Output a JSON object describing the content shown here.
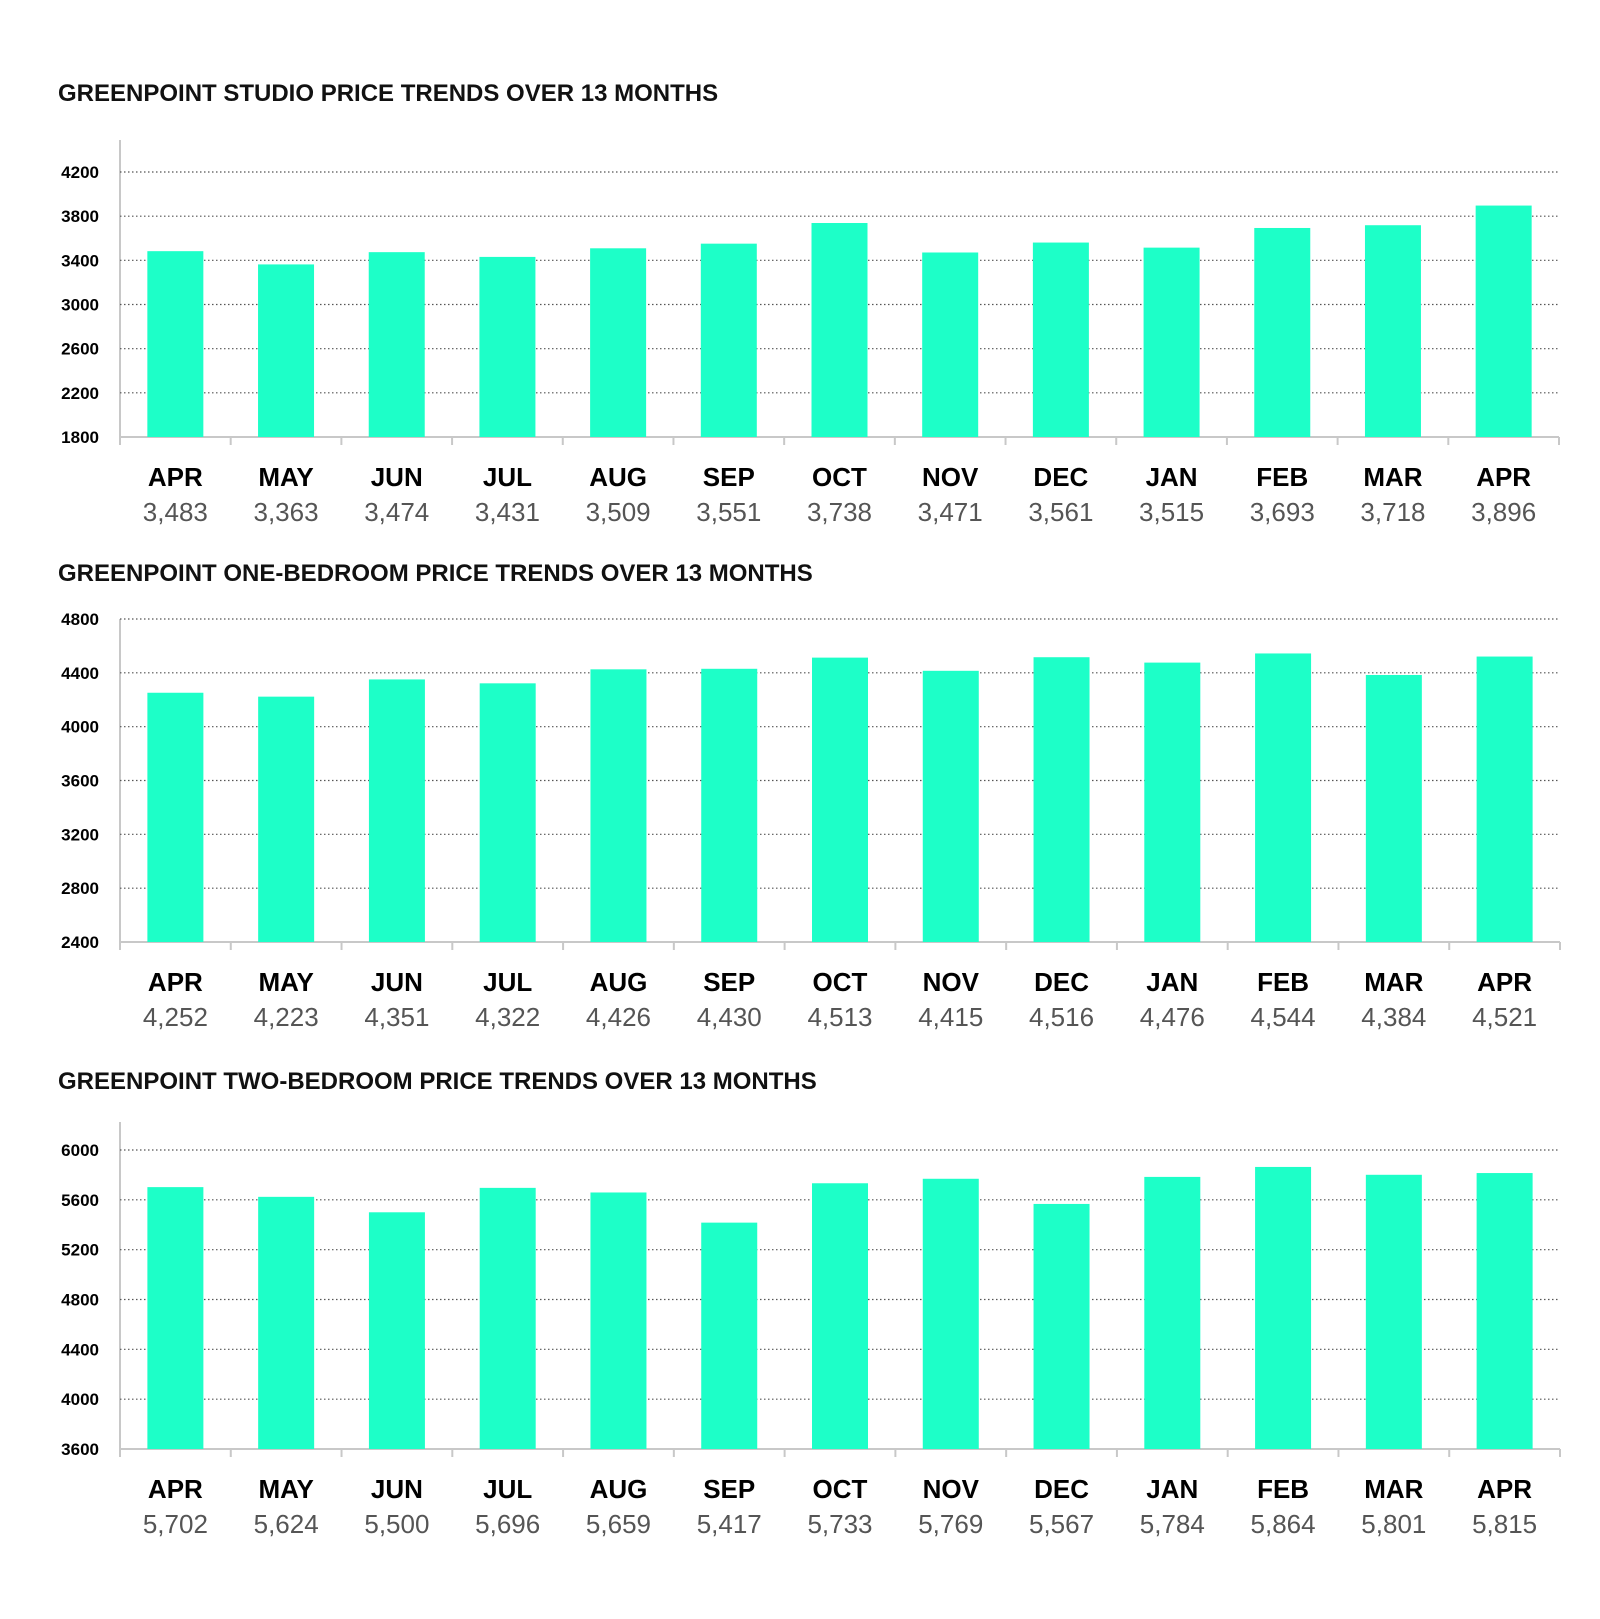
{
  "colors": {
    "bar": "#1dffc8",
    "grid": "#555555",
    "axis": "#c8c8c8",
    "month_label": "#000000",
    "value_label": "#555555",
    "tick_label": "#000000"
  },
  "chart_data": [
    {
      "type": "bar",
      "title": "GREENPOINT STUDIO PRICE TRENDS OVER 13 MONTHS",
      "xlabel": "",
      "ylabel": "",
      "categories": [
        "APR",
        "MAY",
        "JUN",
        "JUL",
        "AUG",
        "SEP",
        "OCT",
        "NOV",
        "DEC",
        "JAN",
        "FEB",
        "MAR",
        "APR"
      ],
      "values": [
        3483,
        3363,
        3474,
        3431,
        3509,
        3551,
        3738,
        3471,
        3561,
        3515,
        3693,
        3718,
        3896
      ],
      "value_labels": [
        "3,483",
        "3,363",
        "3,474",
        "3,431",
        "3,509",
        "3,551",
        "3,738",
        "3,471",
        "3,561",
        "3,515",
        "3,693",
        "3,718",
        "3,896"
      ],
      "ylim": [
        1800,
        4200
      ],
      "yticks": [
        1800,
        2200,
        2600,
        3000,
        3400,
        3800,
        4200
      ],
      "grid": true,
      "grid_style": "dotted"
    },
    {
      "type": "bar",
      "title": "GREENPOINT ONE-BEDROOM PRICE TRENDS OVER 13 MONTHS",
      "xlabel": "",
      "ylabel": "",
      "categories": [
        "APR",
        "MAY",
        "JUN",
        "JUL",
        "AUG",
        "SEP",
        "OCT",
        "NOV",
        "DEC",
        "JAN",
        "FEB",
        "MAR",
        "APR"
      ],
      "values": [
        4252,
        4223,
        4351,
        4322,
        4426,
        4430,
        4513,
        4415,
        4516,
        4476,
        4544,
        4384,
        4521
      ],
      "value_labels": [
        "4,252",
        "4,223",
        "4,351",
        "4,322",
        "4,426",
        "4,430",
        "4,513",
        "4,415",
        "4,516",
        "4,476",
        "4,544",
        "4,384",
        "4,521"
      ],
      "ylim": [
        2400,
        4800
      ],
      "yticks": [
        2400,
        2800,
        3200,
        3600,
        4000,
        4400,
        4800
      ],
      "grid": true,
      "grid_style": "dotted"
    },
    {
      "type": "bar",
      "title": "GREENPOINT TWO-BEDROOM PRICE TRENDS OVER 13 MONTHS",
      "xlabel": "",
      "ylabel": "",
      "categories": [
        "APR",
        "MAY",
        "JUN",
        "JUL",
        "AUG",
        "SEP",
        "OCT",
        "NOV",
        "DEC",
        "JAN",
        "FEB",
        "MAR",
        "APR"
      ],
      "values": [
        5702,
        5624,
        5500,
        5696,
        5659,
        5417,
        5733,
        5769,
        5567,
        5784,
        5864,
        5801,
        5815
      ],
      "value_labels": [
        "5,702",
        "5,624",
        "5,500",
        "5,696",
        "5,659",
        "5,417",
        "5,733",
        "5,769",
        "5,567",
        "5,784",
        "5,864",
        "5,801",
        "5,815"
      ],
      "ylim": [
        3600,
        6000
      ],
      "yticks": [
        3600,
        4000,
        4400,
        4800,
        5200,
        5600,
        6000
      ],
      "grid": true,
      "grid_style": "dotted"
    }
  ]
}
